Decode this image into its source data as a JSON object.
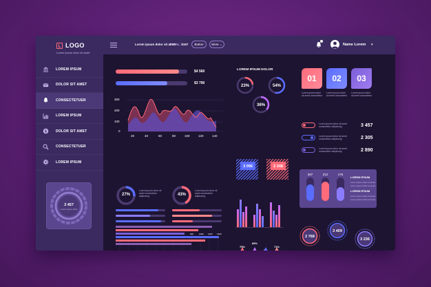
{
  "brand": {
    "logo_text": "LOGO",
    "tagline": "Lorem ipsum dolor sit amet"
  },
  "sidebar": {
    "items": [
      {
        "label": "LOREM IPSUM",
        "icon": "bank-icon"
      },
      {
        "label": "DOLOR SIT AMET",
        "icon": "mail-icon"
      },
      {
        "label": "CONSECTETUER",
        "icon": "bell-icon",
        "active": true
      },
      {
        "label": "LOREM IPSUM",
        "icon": "chart-icon"
      },
      {
        "label": "DOLOR SIT AMET",
        "icon": "dollar-icon"
      },
      {
        "label": "CONSECTETUER",
        "icon": "search-icon"
      },
      {
        "label": "LOREM IPSUM",
        "icon": "gear-icon"
      }
    ],
    "widget": {
      "value": "3 457",
      "caption": "Lorem ipsum dolor"
    }
  },
  "topbar": {
    "text": "Lorem ipsum dolor sit amet",
    "total_label": "TOTAL:",
    "total_value": "$157",
    "button_label": "Button",
    "more_label": "More",
    "user_name": "Name Lorem"
  },
  "main": {
    "progress": [
      {
        "value": "$4 560",
        "fill": 0.88,
        "color": "#ff6b7a"
      },
      {
        "value": "$3 790",
        "fill": 0.72,
        "color": "#5a6dff"
      }
    ],
    "wave_chart": {
      "y_ticks": [
        "300",
        "200",
        "100",
        "0"
      ],
      "x_ticks": [
        "20",
        "40",
        "60",
        "80",
        "100",
        "120",
        "140"
      ]
    },
    "section_title": "LOREM IPSUM DOLOR",
    "ring_stats": [
      "23%",
      "54%",
      "36%"
    ],
    "donuts": [
      {
        "value": "27%",
        "caption": "Lorem ipsum dolor sit amet consectetur adipiscing"
      },
      {
        "value": "43%",
        "caption": "Lorem ipsum dolor sit amet consectetur adipiscing"
      }
    ],
    "stripe_boxes": [
      "3 096",
      "2 348"
    ],
    "cone_labels": [
      "75%",
      "89%",
      "5%",
      "71%"
    ],
    "hex_numbers": [
      "01",
      "02",
      "03"
    ],
    "hex_captions": [
      "Lorem ipsum dolor sit amet consectetur",
      "Lorem ipsum dolor sit amet consectetur",
      "Lorem ipsum dolor sit amet consectetur"
    ],
    "toggle_stats": [
      {
        "value": "3 457",
        "caption": "Lorem ipsum dolor sit amet consectetur adipiscing"
      },
      {
        "value": "2 305",
        "caption": "Lorem ipsum dolor sit amet consectetur adipiscing"
      },
      {
        "value": "2 890",
        "caption": "Lorem ipsum dolor sit amet consectetur adipiscing"
      }
    ],
    "capsule_panel": {
      "values": [
        "387",
        "212",
        "176"
      ],
      "title": "LOREM IPSUM",
      "captions": [
        "Lorem ipsum dolor sit amet",
        "Lorem ipsum dolor sit amet",
        "Lorem ipsum dolor sit amet",
        "Lorem ipsum dolor sit amet"
      ],
      "title2": "LOREM IPSUM"
    },
    "circle_stats": [
      "2 768",
      "3 409",
      "3 236"
    ],
    "hbar_ticks": [
      "100",
      "200",
      "300",
      "400",
      "500",
      "600",
      "700",
      "800",
      "900",
      "1000",
      "1100",
      "1200"
    ]
  }
}
